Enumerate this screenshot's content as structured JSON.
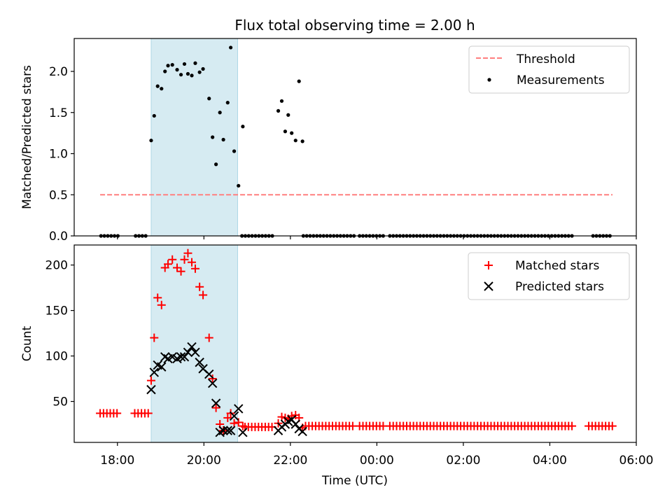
{
  "title": "Flux total observing time = 2.00 h",
  "colors": {
    "threshold": "#ff7f7f",
    "measurement": "#000000",
    "matched": "#ff0000",
    "predicted": "#000000",
    "shade": "#add8e6"
  },
  "chart_data": [
    {
      "type": "scatter",
      "ylabel": "Matched/Predicted stars",
      "xlim_hours": [
        17.0,
        30.0
      ],
      "ylim": [
        0,
        2.4
      ],
      "yticks": [
        0.0,
        0.5,
        1.0,
        1.5,
        2.0
      ],
      "ytick_labels": [
        "0.0",
        "0.5",
        "1.0",
        "1.5",
        "2.0"
      ],
      "xticks": [
        18,
        20,
        22,
        24,
        26,
        28,
        30
      ],
      "shaded_interval_hours": [
        18.78,
        20.78
      ],
      "legend": {
        "placement": "upper right",
        "entries": [
          "Threshold",
          "Measurements"
        ]
      },
      "threshold": {
        "name": "Threshold",
        "y": 0.5,
        "x_hours": [
          17.6,
          29.45
        ]
      },
      "measurements": {
        "name": "Measurements",
        "zero_segments_hours": [
          [
            17.62,
            18.05
          ],
          [
            18.42,
            18.72
          ],
          [
            20.88,
            21.6
          ],
          [
            22.3,
            23.5
          ],
          [
            23.6,
            24.2
          ],
          [
            24.3,
            28.55
          ],
          [
            29.0,
            29.45
          ]
        ],
        "points": [
          [
            18.78,
            1.16
          ],
          [
            18.85,
            1.46
          ],
          [
            18.93,
            1.82
          ],
          [
            19.02,
            1.79
          ],
          [
            19.1,
            2.0
          ],
          [
            19.17,
            2.07
          ],
          [
            19.27,
            2.08
          ],
          [
            19.38,
            2.02
          ],
          [
            19.47,
            1.96
          ],
          [
            19.55,
            2.09
          ],
          [
            19.63,
            1.97
          ],
          [
            19.72,
            1.95
          ],
          [
            19.8,
            2.1
          ],
          [
            19.9,
            1.99
          ],
          [
            19.98,
            2.03
          ],
          [
            20.12,
            1.67
          ],
          [
            20.2,
            1.2
          ],
          [
            20.28,
            0.87
          ],
          [
            20.37,
            1.5
          ],
          [
            20.45,
            1.17
          ],
          [
            20.55,
            1.62
          ],
          [
            20.62,
            2.29
          ],
          [
            20.7,
            1.03
          ],
          [
            20.8,
            0.61
          ],
          [
            20.9,
            1.33
          ],
          [
            21.72,
            1.52
          ],
          [
            21.8,
            1.64
          ],
          [
            21.88,
            1.27
          ],
          [
            21.95,
            1.47
          ],
          [
            22.03,
            1.25
          ],
          [
            22.12,
            1.16
          ],
          [
            22.2,
            1.88
          ],
          [
            22.28,
            1.15
          ]
        ]
      }
    },
    {
      "type": "scatter",
      "xlabel": "Time (UTC)",
      "ylabel": "Count",
      "xlim_hours": [
        17.0,
        30.0
      ],
      "ylim": [
        5,
        222
      ],
      "yticks": [
        50,
        100,
        150,
        200
      ],
      "ytick_labels": [
        "50",
        "100",
        "150",
        "200"
      ],
      "xticks": [
        18,
        20,
        22,
        24,
        26,
        28,
        30
      ],
      "xtick_labels": [
        "18:00",
        "20:00",
        "22:00",
        "00:00",
        "02:00",
        "04:00",
        "06:00"
      ],
      "shaded_interval_hours": [
        18.78,
        20.78
      ],
      "legend": {
        "placement": "upper right",
        "entries": [
          "Matched stars",
          "Predicted stars"
        ]
      },
      "matched": {
        "name": "Matched stars",
        "flat_segments": [
          {
            "x_hours": [
              17.6,
              18.05
            ],
            "y": 37
          },
          {
            "x_hours": [
              18.4,
              18.72
            ],
            "y": 37
          },
          {
            "x_hours": [
              20.95,
              21.65
            ],
            "y": 22
          },
          {
            "x_hours": [
              22.35,
              23.5
            ],
            "y": 23
          },
          {
            "x_hours": [
              23.6,
              24.2
            ],
            "y": 23
          },
          {
            "x_hours": [
              24.3,
              28.55
            ],
            "y": 23
          },
          {
            "x_hours": [
              28.9,
              29.45
            ],
            "y": 23
          }
        ],
        "points": [
          [
            18.78,
            73
          ],
          [
            18.85,
            120
          ],
          [
            18.93,
            164
          ],
          [
            19.02,
            156
          ],
          [
            19.1,
            197
          ],
          [
            19.17,
            201
          ],
          [
            19.27,
            206
          ],
          [
            19.38,
            197
          ],
          [
            19.47,
            193
          ],
          [
            19.55,
            206
          ],
          [
            19.63,
            213
          ],
          [
            19.72,
            203
          ],
          [
            19.8,
            196
          ],
          [
            19.9,
            176
          ],
          [
            19.98,
            167
          ],
          [
            20.12,
            120
          ],
          [
            20.2,
            75
          ],
          [
            20.28,
            43
          ],
          [
            20.37,
            25
          ],
          [
            20.45,
            18
          ],
          [
            20.55,
            32
          ],
          [
            20.62,
            37
          ],
          [
            20.7,
            26
          ],
          [
            20.8,
            27
          ],
          [
            20.9,
            23
          ],
          [
            21.72,
            26
          ],
          [
            21.8,
            33
          ],
          [
            21.88,
            32
          ],
          [
            21.95,
            31
          ],
          [
            22.03,
            34
          ],
          [
            22.12,
            35
          ],
          [
            22.2,
            32
          ],
          [
            22.28,
            21
          ]
        ]
      },
      "predicted": {
        "name": "Predicted stars",
        "points": [
          [
            18.78,
            63
          ],
          [
            18.85,
            82
          ],
          [
            18.93,
            90
          ],
          [
            19.02,
            88
          ],
          [
            19.1,
            99
          ],
          [
            19.17,
            97
          ],
          [
            19.27,
            99
          ],
          [
            19.38,
            97
          ],
          [
            19.47,
            99
          ],
          [
            19.55,
            99
          ],
          [
            19.63,
            104
          ],
          [
            19.72,
            110
          ],
          [
            19.8,
            104
          ],
          [
            19.9,
            93
          ],
          [
            19.98,
            86
          ],
          [
            20.12,
            80
          ],
          [
            20.2,
            70
          ],
          [
            20.28,
            48
          ],
          [
            20.37,
            16
          ],
          [
            20.45,
            18
          ],
          [
            20.55,
            18
          ],
          [
            20.62,
            18
          ],
          [
            20.7,
            34
          ],
          [
            20.8,
            42
          ],
          [
            20.9,
            16
          ],
          [
            21.72,
            18
          ],
          [
            21.8,
            22
          ],
          [
            21.88,
            25
          ],
          [
            21.95,
            28
          ],
          [
            22.03,
            30
          ],
          [
            22.12,
            25
          ],
          [
            22.2,
            20
          ],
          [
            22.28,
            17
          ]
        ]
      }
    }
  ]
}
